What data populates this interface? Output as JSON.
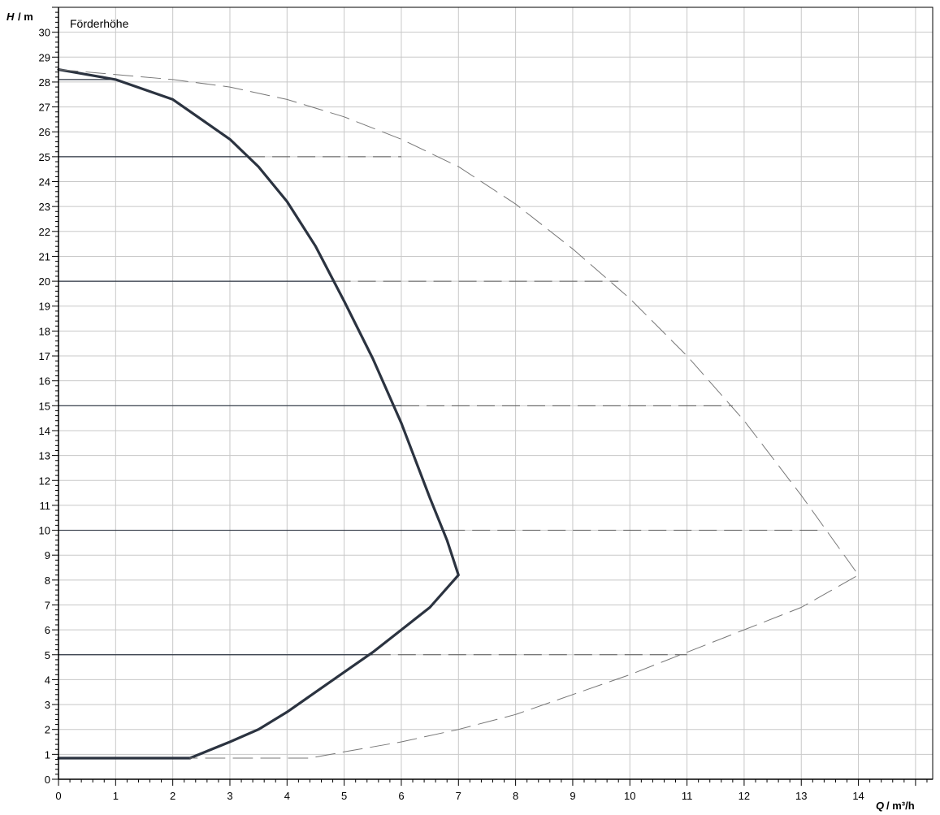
{
  "chart_data": {
    "type": "line",
    "title": "Förderhöhe",
    "y_axis": {
      "symbol": "H",
      "unit": "/ m",
      "min": 0,
      "max": 31,
      "major_step": 1,
      "tick_labels": [
        "0",
        "1",
        "2",
        "3",
        "4",
        "5",
        "6",
        "7",
        "8",
        "9",
        "10",
        "11",
        "12",
        "13",
        "14",
        "15",
        "16",
        "17",
        "18",
        "19",
        "20",
        "21",
        "22",
        "23",
        "24",
        "25",
        "26",
        "27",
        "28",
        "29",
        "30"
      ]
    },
    "x_axis": {
      "symbol": "Q",
      "unit": "/ m³/h",
      "min": 0,
      "max": 15.3,
      "major_step": 1,
      "tick_labels": [
        "0",
        "1",
        "2",
        "3",
        "4",
        "5",
        "6",
        "7",
        "8",
        "9",
        "10",
        "11",
        "12",
        "13",
        "14"
      ]
    },
    "grid": true,
    "series": [
      {
        "style": "solid-thick",
        "color": "#2b3340",
        "points": [
          [
            0,
            28.5
          ],
          [
            1,
            28.1
          ],
          [
            2,
            27.3
          ],
          [
            3,
            25.7
          ],
          [
            3.5,
            24.6
          ],
          [
            4,
            23.2
          ],
          [
            4.5,
            21.4
          ],
          [
            5,
            19.2
          ],
          [
            5.5,
            16.9
          ],
          [
            6,
            14.3
          ],
          [
            6.5,
            11.3
          ],
          [
            6.8,
            9.6
          ],
          [
            7,
            8.2
          ],
          [
            6.5,
            6.9
          ],
          [
            6,
            6.0
          ],
          [
            5.5,
            5.1
          ],
          [
            5,
            4.3
          ],
          [
            4.5,
            3.5
          ],
          [
            4,
            2.7
          ],
          [
            3.5,
            2.0
          ],
          [
            3,
            1.5
          ],
          [
            2.3,
            0.85
          ],
          [
            0,
            0.85
          ]
        ]
      },
      {
        "style": "dashed",
        "color": "#777777",
        "points": [
          [
            0,
            28.5
          ],
          [
            1,
            28.3
          ],
          [
            2,
            28.1
          ],
          [
            3,
            27.8
          ],
          [
            4,
            27.3
          ],
          [
            5,
            26.6
          ],
          [
            6,
            25.7
          ],
          [
            7,
            24.6
          ],
          [
            8,
            23.1
          ],
          [
            9,
            21.3
          ],
          [
            10,
            19.3
          ],
          [
            11,
            17.0
          ],
          [
            12,
            14.4
          ],
          [
            13,
            11.4
          ],
          [
            14,
            8.2
          ],
          [
            13,
            6.9
          ],
          [
            12,
            6.0
          ],
          [
            11,
            5.1
          ],
          [
            10,
            4.2
          ],
          [
            9,
            3.4
          ],
          [
            8,
            2.6
          ],
          [
            7,
            2.0
          ],
          [
            6,
            1.5
          ],
          [
            5,
            1.1
          ],
          [
            4.4,
            0.85
          ],
          [
            2.3,
            0.85
          ]
        ]
      }
    ],
    "reference_lines": [
      {
        "y": 28.1,
        "x_from": 0,
        "solid_to": 1,
        "dashed_to": 1
      },
      {
        "y": 25,
        "x_from": 0,
        "solid_to": 3.3,
        "dashed_to": 6.0
      },
      {
        "y": 20,
        "x_from": 0,
        "solid_to": 4.8,
        "dashed_to": 9.8
      },
      {
        "y": 15,
        "x_from": 0,
        "solid_to": 6.0,
        "dashed_to": 11.8
      },
      {
        "y": 10,
        "x_from": 0,
        "solid_to": 6.8,
        "dashed_to": 13.3
      },
      {
        "y": 5,
        "x_from": 0,
        "solid_to": 5.5,
        "dashed_to": 11.0
      }
    ]
  }
}
